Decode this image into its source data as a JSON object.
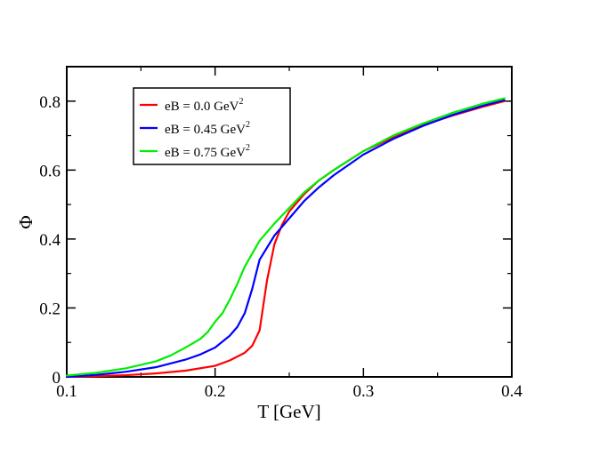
{
  "chart_data": {
    "type": "line",
    "title": "",
    "xlabel": "T [GeV]",
    "ylabel": "Φ",
    "xlim": [
      0.1,
      0.4
    ],
    "ylim": [
      0,
      0.9
    ],
    "xticks": [
      0.1,
      0.2,
      0.3,
      0.4
    ],
    "xtick_labels": [
      "0.1",
      "0.2",
      "0.3",
      "0.4"
    ],
    "yticks": [
      0,
      0.2,
      0.4,
      0.6,
      0.8
    ],
    "ytick_labels": [
      "0",
      "0.2",
      "0.4",
      "0.6",
      "0.8"
    ],
    "grid": false,
    "legend_position": "top-left",
    "series": [
      {
        "name": "eB = 0.0 GeV",
        "superscript": "2",
        "color": "#ff0000",
        "x": [
          0.1,
          0.12,
          0.14,
          0.16,
          0.18,
          0.2,
          0.21,
          0.22,
          0.225,
          0.23,
          0.235,
          0.24,
          0.245,
          0.25,
          0.26,
          0.27,
          0.28,
          0.3,
          0.32,
          0.34,
          0.36,
          0.38,
          0.395
        ],
        "y": [
          0.0,
          0.002,
          0.005,
          0.01,
          0.018,
          0.032,
          0.048,
          0.07,
          0.09,
          0.135,
          0.28,
          0.385,
          0.44,
          0.48,
          0.53,
          0.57,
          0.6,
          0.655,
          0.695,
          0.73,
          0.758,
          0.783,
          0.8
        ]
      },
      {
        "name": "eB = 0.45 GeV",
        "superscript": "2",
        "color": "#0000ff",
        "x": [
          0.1,
          0.12,
          0.14,
          0.16,
          0.18,
          0.19,
          0.2,
          0.21,
          0.215,
          0.22,
          0.225,
          0.23,
          0.24,
          0.25,
          0.26,
          0.27,
          0.28,
          0.3,
          0.32,
          0.34,
          0.36,
          0.38,
          0.395
        ],
        "y": [
          0.0,
          0.006,
          0.015,
          0.028,
          0.05,
          0.065,
          0.085,
          0.12,
          0.145,
          0.185,
          0.255,
          0.34,
          0.41,
          0.46,
          0.51,
          0.55,
          0.585,
          0.645,
          0.69,
          0.728,
          0.76,
          0.786,
          0.803
        ]
      },
      {
        "name": "eB = 0.75 GeV",
        "superscript": "2",
        "color": "#00ee00",
        "x": [
          0.1,
          0.12,
          0.14,
          0.16,
          0.17,
          0.18,
          0.19,
          0.195,
          0.2,
          0.205,
          0.21,
          0.215,
          0.22,
          0.23,
          0.24,
          0.25,
          0.26,
          0.27,
          0.28,
          0.3,
          0.32,
          0.34,
          0.36,
          0.38,
          0.395
        ],
        "y": [
          0.004,
          0.012,
          0.025,
          0.045,
          0.062,
          0.085,
          0.11,
          0.13,
          0.16,
          0.185,
          0.225,
          0.27,
          0.32,
          0.395,
          0.445,
          0.49,
          0.535,
          0.57,
          0.6,
          0.655,
          0.7,
          0.735,
          0.766,
          0.792,
          0.808
        ]
      }
    ]
  }
}
